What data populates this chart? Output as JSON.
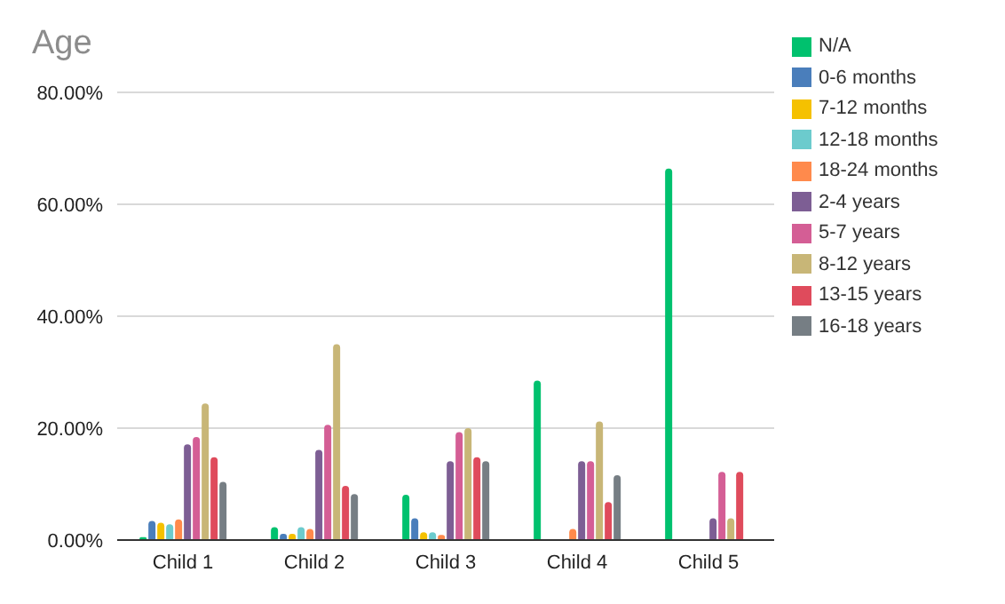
{
  "chart_data": {
    "type": "bar",
    "title": "Age",
    "categories": [
      "Child 1",
      "Child 2",
      "Child 3",
      "Child 4",
      "Child 5"
    ],
    "series": [
      {
        "name": "N/A",
        "color": "#00c16e",
        "values": [
          0.5,
          2.3,
          8.1,
          28.5,
          66.4
        ]
      },
      {
        "name": "0-6 months",
        "color": "#4a7ebb",
        "values": [
          3.4,
          1.1,
          3.9,
          null,
          null
        ]
      },
      {
        "name": "7-12 months",
        "color": "#f5c100",
        "values": [
          3.1,
          1.1,
          1.4,
          null,
          null
        ]
      },
      {
        "name": "12-18 months",
        "color": "#6ccbcd",
        "values": [
          2.8,
          2.3,
          1.4,
          null,
          null
        ]
      },
      {
        "name": "18-24 months",
        "color": "#ff8a4c",
        "values": [
          3.7,
          2.0,
          0.9,
          2.0,
          null
        ]
      },
      {
        "name": "2-4 years",
        "color": "#7d5e94",
        "values": [
          17.1,
          16.1,
          14.1,
          14.1,
          3.9
        ]
      },
      {
        "name": "5-7 years",
        "color": "#d45e95",
        "values": [
          18.4,
          20.6,
          19.3,
          14.1,
          12.2
        ]
      },
      {
        "name": "8-12 years",
        "color": "#c8b677",
        "values": [
          24.4,
          35.0,
          20.0,
          21.2,
          3.9
        ]
      },
      {
        "name": "13-15 years",
        "color": "#df4b5c",
        "values": [
          14.8,
          9.7,
          14.8,
          6.8,
          12.2
        ]
      },
      {
        "name": "16-18 years",
        "color": "#767e84",
        "values": [
          10.4,
          8.2,
          14.1,
          11.6,
          null
        ]
      }
    ],
    "ylim": [
      0,
      80
    ],
    "yticks": [
      {
        "value": 0,
        "label": "0.00%"
      },
      {
        "value": 20,
        "label": "20.00%"
      },
      {
        "value": 40,
        "label": "40.00%"
      },
      {
        "value": 60,
        "label": "60.00%"
      },
      {
        "value": 80,
        "label": "80.00%"
      }
    ],
    "grid": "y",
    "legend": "right"
  }
}
